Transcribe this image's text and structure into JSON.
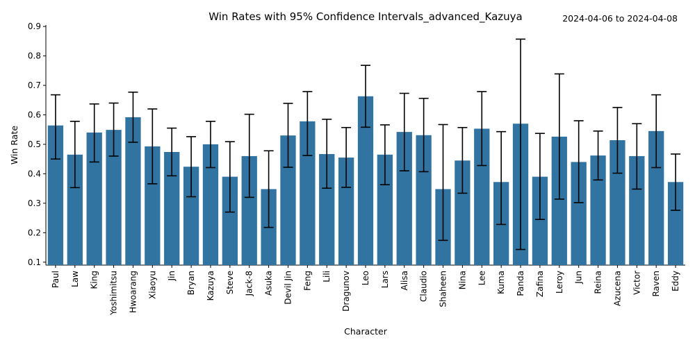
{
  "chart_data": {
    "type": "bar",
    "title": "Win Rates with 95% Confidence Intervals_advanced_Kazuya",
    "date_range": "2024-04-06 to 2024-04-08",
    "xlabel": "Character",
    "ylabel": "Win Rate",
    "ylim": [
      0.09,
      0.905
    ],
    "yticks": [
      0.1,
      0.2,
      0.3,
      0.4,
      0.5,
      0.6,
      0.7,
      0.8,
      0.9
    ],
    "ytick_labels": [
      "0.1",
      "0.2",
      "0.3",
      "0.4",
      "0.5",
      "0.6",
      "0.7",
      "0.8",
      "0.9"
    ],
    "grid": false,
    "bar_color": "#3274a1",
    "errorbar_color": "#000000",
    "categories": [
      "Paul",
      "Law",
      "King",
      "Yoshimitsu",
      "Hwoarang",
      "Xiaoyu",
      "Jin",
      "Bryan",
      "Kazuya",
      "Steve",
      "Jack-8",
      "Asuka",
      "Devil Jin",
      "Feng",
      "Lili",
      "Dragunov",
      "Leo",
      "Lars",
      "Alisa",
      "Claudio",
      "Shaheen",
      "Nina",
      "Lee",
      "Kuma",
      "Panda",
      "Zafina",
      "Leroy",
      "Jun",
      "Reina",
      "Azucena",
      "Victor",
      "Raven",
      "Eddy"
    ],
    "values": [
      0.564,
      0.465,
      0.54,
      0.549,
      0.592,
      0.493,
      0.474,
      0.424,
      0.5,
      0.39,
      0.46,
      0.348,
      0.53,
      0.578,
      0.467,
      0.455,
      0.663,
      0.465,
      0.542,
      0.531,
      0.348,
      0.445,
      0.553,
      0.372,
      0.57,
      0.39,
      0.526,
      0.44,
      0.462,
      0.514,
      0.46,
      0.545,
      0.372
    ],
    "ci_lower": [
      0.45,
      0.353,
      0.44,
      0.46,
      0.507,
      0.366,
      0.393,
      0.322,
      0.421,
      0.27,
      0.32,
      0.218,
      0.422,
      0.462,
      0.351,
      0.354,
      0.558,
      0.363,
      0.41,
      0.407,
      0.174,
      0.334,
      0.428,
      0.228,
      0.143,
      0.245,
      0.314,
      0.302,
      0.379,
      0.402,
      0.348,
      0.421,
      0.276
    ],
    "ci_upper": [
      0.668,
      0.578,
      0.637,
      0.64,
      0.677,
      0.62,
      0.555,
      0.526,
      0.578,
      0.509,
      0.602,
      0.478,
      0.639,
      0.679,
      0.585,
      0.557,
      0.768,
      0.566,
      0.673,
      0.656,
      0.567,
      0.557,
      0.679,
      0.543,
      0.857,
      0.537,
      0.739,
      0.58,
      0.545,
      0.625,
      0.57,
      0.668,
      0.467
    ]
  }
}
